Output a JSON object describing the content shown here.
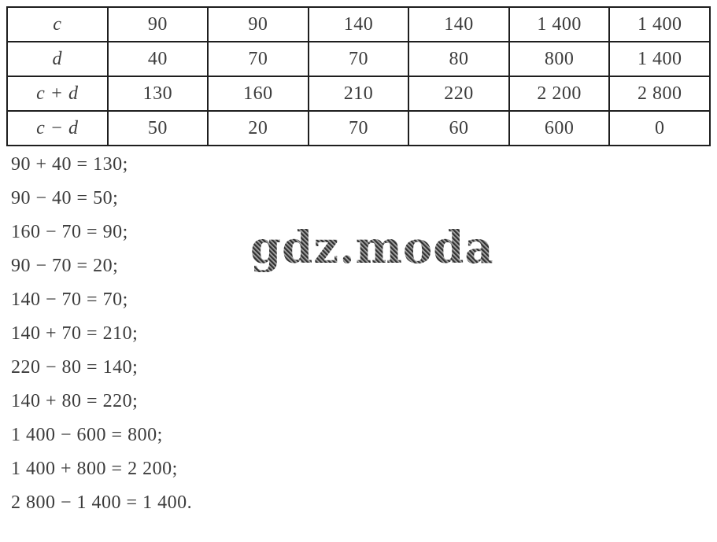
{
  "table": {
    "rows": [
      {
        "label": "c",
        "values": [
          "90",
          "90",
          "140",
          "140",
          "1 400",
          "1 400"
        ]
      },
      {
        "label": "d",
        "values": [
          "40",
          "70",
          "70",
          "80",
          "800",
          "1 400"
        ]
      },
      {
        "label": "c + d",
        "values": [
          "130",
          "160",
          "210",
          "220",
          "2 200",
          "2 800"
        ]
      },
      {
        "label": "c − d",
        "values": [
          "50",
          "20",
          "70",
          "60",
          "600",
          "0"
        ]
      }
    ]
  },
  "equations": [
    "90 + 40 = 130;",
    "90 − 40 = 50;",
    "160 − 70 = 90;",
    "90 − 70 = 20;",
    "140 − 70 = 70;",
    "140 + 70 = 210;",
    "220 − 80 = 140;",
    "140 + 80 = 220;",
    "1 400 − 600 = 800;",
    "1 400 + 800 = 2 200;",
    "2 800 − 1 400 = 1 400."
  ],
  "watermark": {
    "text": "gdz.moda"
  },
  "colors": {
    "background": "#ffffff",
    "table_border": "#1e1e1e",
    "text": "#3c3c3c",
    "watermark": "#4a4a4a"
  }
}
